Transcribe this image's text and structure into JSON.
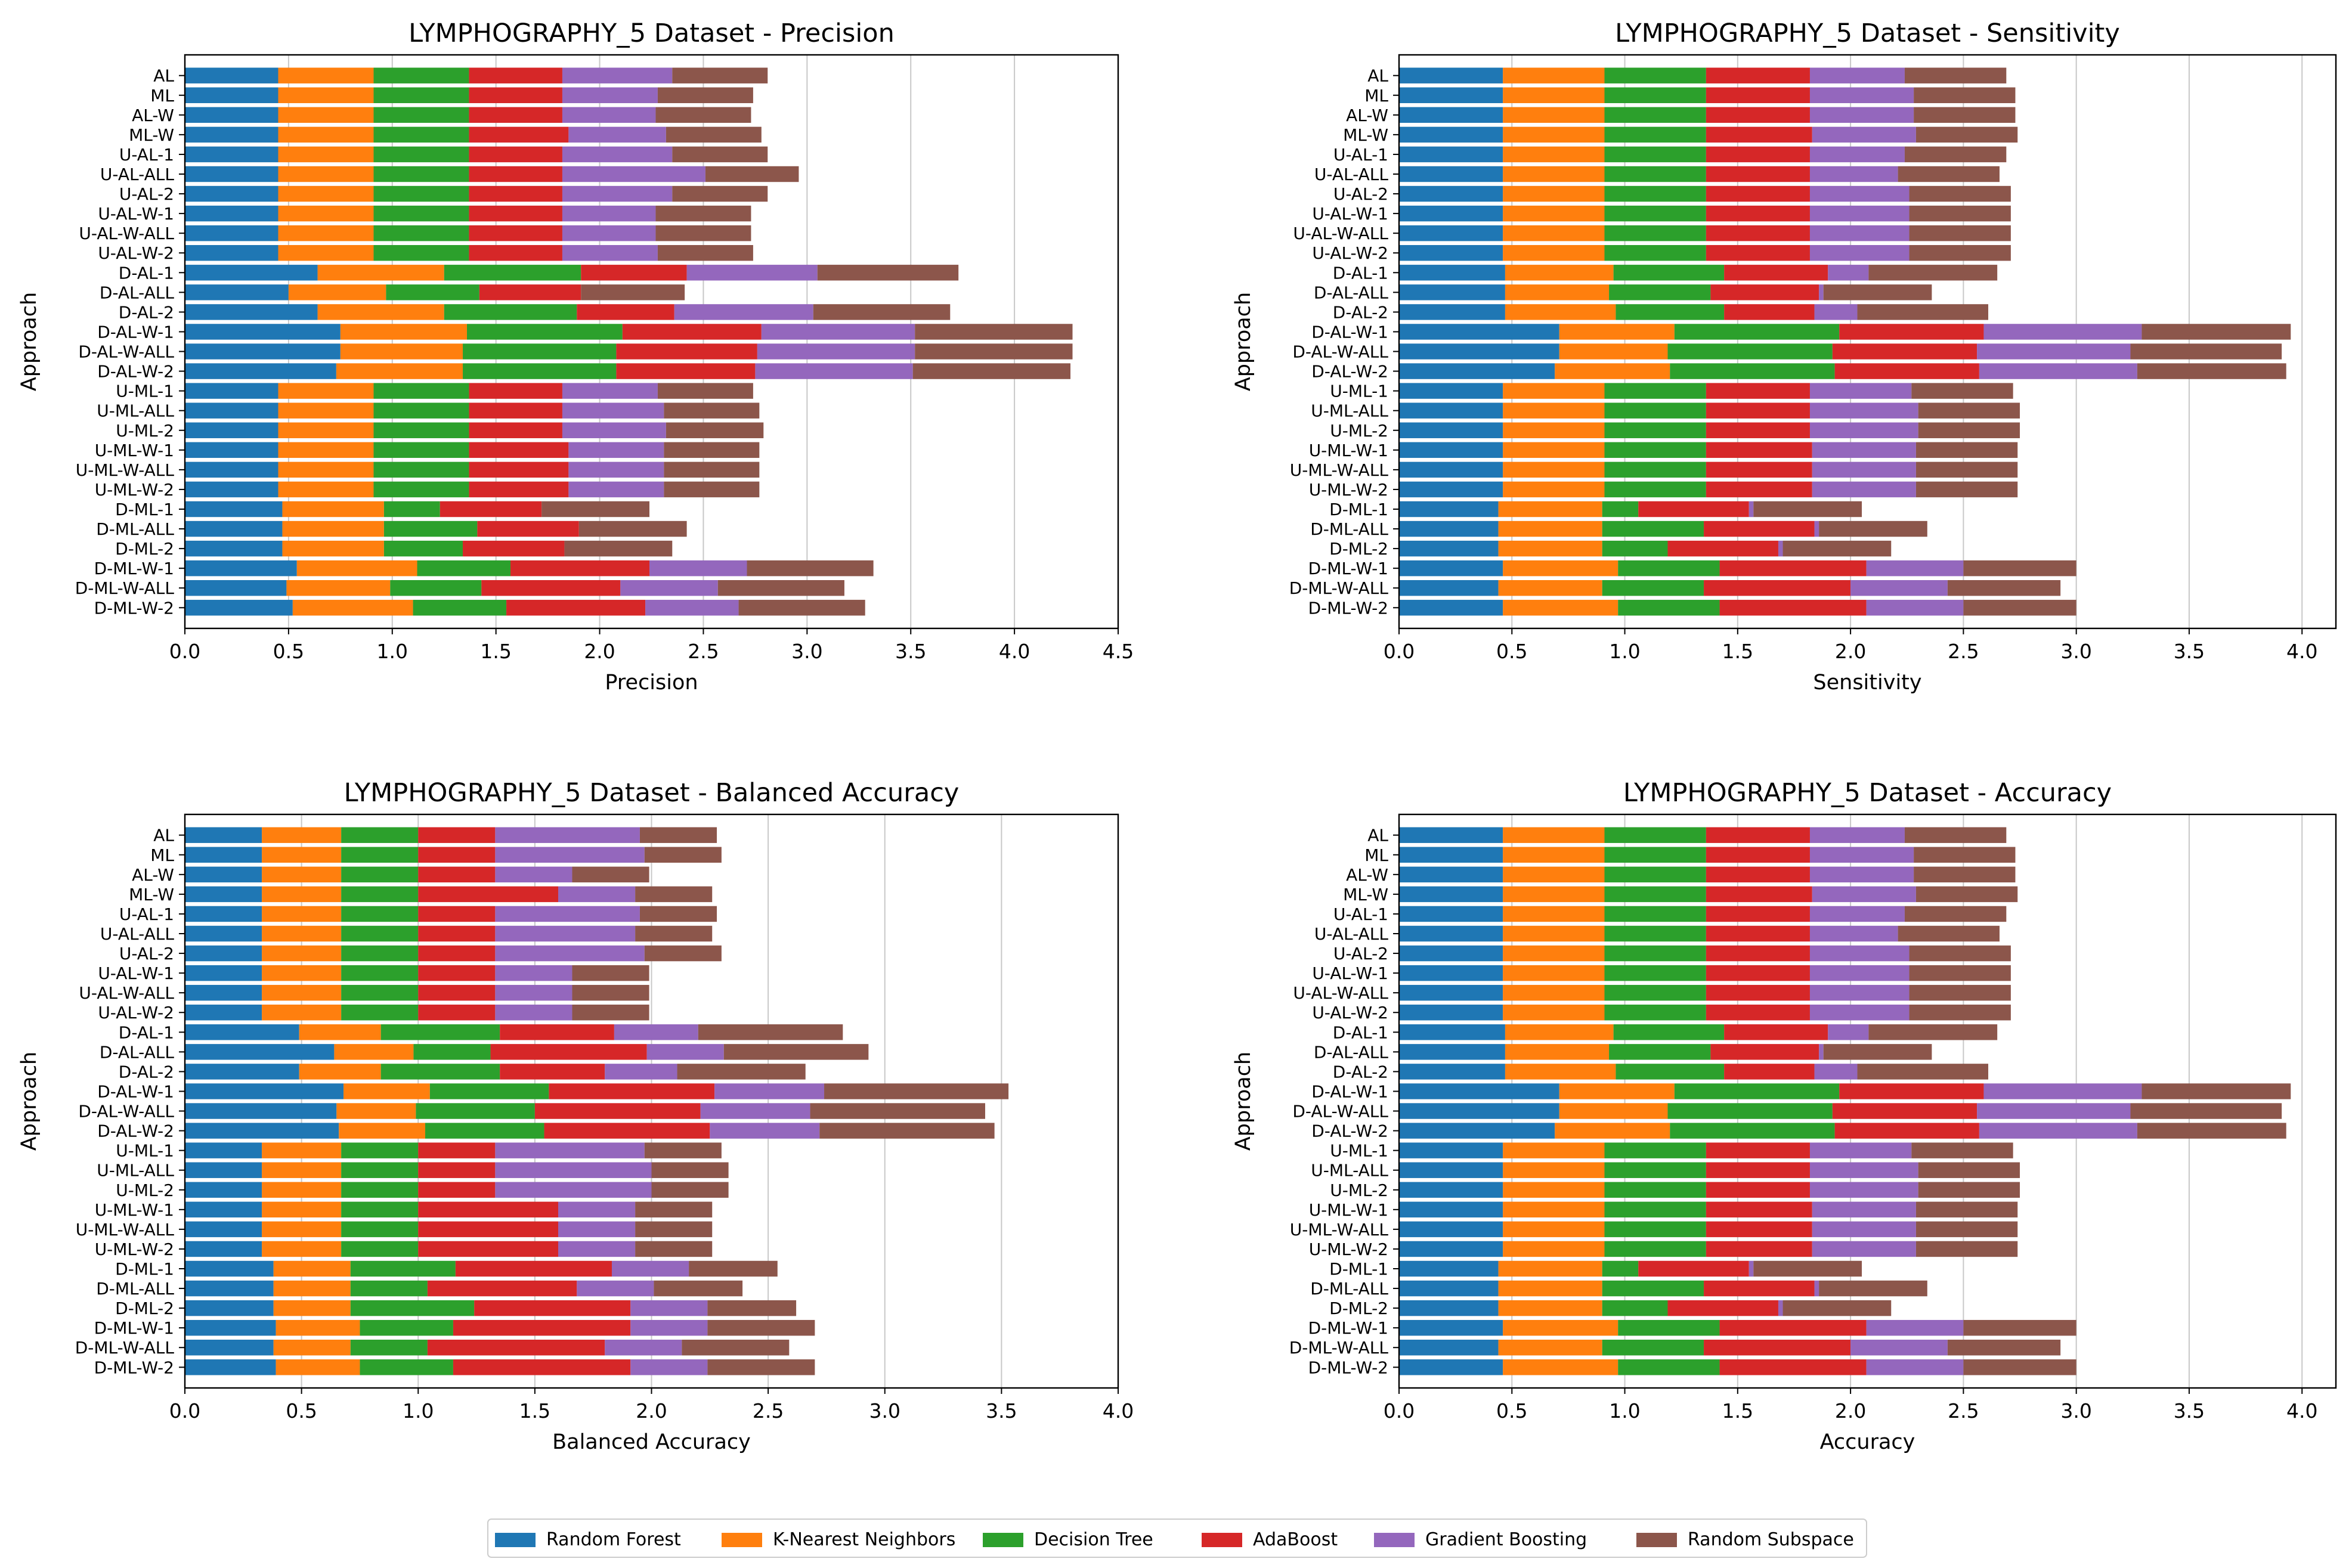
{
  "approaches": [
    "D-ML-W-2",
    "D-ML-W-ALL",
    "D-ML-W-1",
    "D-ML-2",
    "D-ML-ALL",
    "D-ML-1",
    "U-ML-W-2",
    "U-ML-W-ALL",
    "U-ML-W-1",
    "U-ML-2",
    "U-ML-ALL",
    "U-ML-1",
    "D-AL-W-2",
    "D-AL-W-ALL",
    "D-AL-W-1",
    "D-AL-2",
    "D-AL-ALL",
    "D-AL-1",
    "U-AL-W-2",
    "U-AL-W-ALL",
    "U-AL-W-1",
    "U-AL-2",
    "U-AL-ALL",
    "U-AL-1",
    "ML-W",
    "AL-W",
    "ML",
    "AL"
  ],
  "legend": {
    "placement": "bottom-center",
    "entries": [
      {
        "name": "Random Forest",
        "color": "#1f77b4"
      },
      {
        "name": "K-Nearest Neighbors",
        "color": "#ff7f0e"
      },
      {
        "name": "Decision Tree",
        "color": "#2ca02c"
      },
      {
        "name": "AdaBoost",
        "color": "#d62728"
      },
      {
        "name": "Gradient Boosting",
        "color": "#9467bd"
      },
      {
        "name": "Random Subspace",
        "color": "#8c564b"
      }
    ]
  },
  "chart_data": [
    {
      "type": "bar",
      "orientation": "horizontal",
      "stacked": true,
      "title": "LYMPHOGRAPHY_5 Dataset - Precision",
      "xlabel": "Precision",
      "ylabel": "Approach",
      "xlim": [
        0,
        4.5
      ],
      "xticks": [
        "0.0",
        "0.5",
        "1.0",
        "1.5",
        "2.0",
        "2.5",
        "3.0",
        "3.5",
        "4.0",
        "4.5"
      ],
      "grid": "x",
      "series": [
        {
          "name": "Random Forest",
          "values": [
            0.52,
            0.49,
            0.54,
            0.47,
            0.47,
            0.47,
            0.45,
            0.45,
            0.45,
            0.45,
            0.45,
            0.45,
            0.73,
            0.75,
            0.75,
            0.64,
            0.5,
            0.64,
            0.45,
            0.45,
            0.45,
            0.45,
            0.45,
            0.45,
            0.45,
            0.45,
            0.45,
            0.45
          ]
        },
        {
          "name": "K-Nearest Neighbors",
          "values": [
            0.58,
            0.5,
            0.58,
            0.49,
            0.49,
            0.49,
            0.46,
            0.46,
            0.46,
            0.46,
            0.46,
            0.46,
            0.61,
            0.59,
            0.61,
            0.61,
            0.47,
            0.61,
            0.46,
            0.46,
            0.46,
            0.46,
            0.46,
            0.46,
            0.46,
            0.46,
            0.46,
            0.46
          ]
        },
        {
          "name": "Decision Tree",
          "values": [
            0.45,
            0.44,
            0.45,
            0.38,
            0.45,
            0.27,
            0.46,
            0.46,
            0.46,
            0.46,
            0.46,
            0.46,
            0.74,
            0.74,
            0.75,
            0.64,
            0.45,
            0.66,
            0.46,
            0.46,
            0.46,
            0.46,
            0.46,
            0.46,
            0.46,
            0.46,
            0.46,
            0.46
          ]
        },
        {
          "name": "AdaBoost",
          "values": [
            0.67,
            0.67,
            0.67,
            0.49,
            0.49,
            0.49,
            0.48,
            0.48,
            0.48,
            0.45,
            0.45,
            0.45,
            0.67,
            0.68,
            0.67,
            0.47,
            0.49,
            0.51,
            0.45,
            0.45,
            0.45,
            0.45,
            0.45,
            0.45,
            0.48,
            0.45,
            0.45,
            0.45
          ]
        },
        {
          "name": "Gradient Boosting",
          "values": [
            0.45,
            0.47,
            0.47,
            0.0,
            0.0,
            0.0,
            0.46,
            0.46,
            0.46,
            0.5,
            0.49,
            0.46,
            0.76,
            0.76,
            0.74,
            0.67,
            0.0,
            0.63,
            0.46,
            0.45,
            0.45,
            0.53,
            0.69,
            0.53,
            0.47,
            0.45,
            0.46,
            0.53
          ]
        },
        {
          "name": "Random Subspace",
          "values": [
            0.61,
            0.61,
            0.61,
            0.52,
            0.52,
            0.52,
            0.46,
            0.46,
            0.46,
            0.47,
            0.46,
            0.46,
            0.76,
            0.76,
            0.76,
            0.66,
            0.5,
            0.68,
            0.46,
            0.46,
            0.46,
            0.46,
            0.45,
            0.46,
            0.46,
            0.46,
            0.46,
            0.46
          ]
        }
      ]
    },
    {
      "type": "bar",
      "orientation": "horizontal",
      "stacked": true,
      "title": "LYMPHOGRAPHY_5 Dataset - Sensitivity",
      "xlabel": "Sensitivity",
      "ylabel": "Approach",
      "xlim": [
        0,
        4.15
      ],
      "xticks": [
        "0.0",
        "0.5",
        "1.0",
        "1.5",
        "2.0",
        "2.5",
        "3.0",
        "3.5",
        "4.0"
      ],
      "grid": "x",
      "series": [
        {
          "name": "Random Forest",
          "values": [
            0.46,
            0.44,
            0.46,
            0.44,
            0.44,
            0.44,
            0.46,
            0.46,
            0.46,
            0.46,
            0.46,
            0.46,
            0.69,
            0.71,
            0.71,
            0.47,
            0.47,
            0.47,
            0.46,
            0.46,
            0.46,
            0.46,
            0.46,
            0.46,
            0.46,
            0.46,
            0.46,
            0.46
          ]
        },
        {
          "name": "K-Nearest Neighbors",
          "values": [
            0.51,
            0.46,
            0.51,
            0.46,
            0.46,
            0.46,
            0.45,
            0.45,
            0.45,
            0.45,
            0.45,
            0.45,
            0.51,
            0.48,
            0.51,
            0.49,
            0.46,
            0.48,
            0.45,
            0.45,
            0.45,
            0.45,
            0.45,
            0.45,
            0.45,
            0.45,
            0.45,
            0.45
          ]
        },
        {
          "name": "Decision Tree",
          "values": [
            0.45,
            0.45,
            0.45,
            0.29,
            0.45,
            0.16,
            0.45,
            0.45,
            0.45,
            0.45,
            0.45,
            0.45,
            0.73,
            0.73,
            0.73,
            0.48,
            0.45,
            0.49,
            0.45,
            0.45,
            0.45,
            0.45,
            0.45,
            0.45,
            0.45,
            0.45,
            0.45,
            0.45
          ]
        },
        {
          "name": "AdaBoost",
          "values": [
            0.65,
            0.65,
            0.65,
            0.49,
            0.49,
            0.49,
            0.47,
            0.47,
            0.47,
            0.46,
            0.46,
            0.46,
            0.64,
            0.64,
            0.64,
            0.4,
            0.48,
            0.46,
            0.46,
            0.46,
            0.46,
            0.46,
            0.46,
            0.46,
            0.47,
            0.46,
            0.46,
            0.46
          ]
        },
        {
          "name": "Gradient Boosting",
          "values": [
            0.43,
            0.43,
            0.43,
            0.02,
            0.02,
            0.02,
            0.46,
            0.46,
            0.46,
            0.48,
            0.48,
            0.45,
            0.7,
            0.68,
            0.7,
            0.19,
            0.02,
            0.18,
            0.44,
            0.44,
            0.44,
            0.44,
            0.39,
            0.42,
            0.46,
            0.46,
            0.46,
            0.42
          ]
        },
        {
          "name": "Random Subspace",
          "values": [
            0.5,
            0.5,
            0.5,
            0.48,
            0.48,
            0.48,
            0.45,
            0.45,
            0.45,
            0.45,
            0.45,
            0.45,
            0.66,
            0.67,
            0.66,
            0.58,
            0.48,
            0.57,
            0.45,
            0.45,
            0.45,
            0.45,
            0.45,
            0.45,
            0.45,
            0.45,
            0.45,
            0.45
          ]
        }
      ]
    },
    {
      "type": "bar",
      "orientation": "horizontal",
      "stacked": true,
      "title": "LYMPHOGRAPHY_5 Dataset - Balanced Accuracy",
      "xlabel": "Balanced Accuracy",
      "ylabel": "Approach",
      "xlim": [
        0,
        4.0
      ],
      "xticks": [
        "0.0",
        "0.5",
        "1.0",
        "1.5",
        "2.0",
        "2.5",
        "3.0",
        "3.5",
        "4.0"
      ],
      "grid": "x",
      "series": [
        {
          "name": "Random Forest",
          "values": [
            0.39,
            0.38,
            0.39,
            0.38,
            0.38,
            0.38,
            0.33,
            0.33,
            0.33,
            0.33,
            0.33,
            0.33,
            0.66,
            0.65,
            0.68,
            0.49,
            0.64,
            0.49,
            0.33,
            0.33,
            0.33,
            0.33,
            0.33,
            0.33,
            0.33,
            0.33,
            0.33,
            0.33
          ]
        },
        {
          "name": "K-Nearest Neighbors",
          "values": [
            0.36,
            0.33,
            0.36,
            0.33,
            0.33,
            0.33,
            0.34,
            0.34,
            0.34,
            0.34,
            0.34,
            0.34,
            0.37,
            0.34,
            0.37,
            0.35,
            0.34,
            0.35,
            0.34,
            0.34,
            0.34,
            0.34,
            0.34,
            0.34,
            0.34,
            0.34,
            0.34,
            0.34
          ]
        },
        {
          "name": "Decision Tree",
          "values": [
            0.4,
            0.33,
            0.4,
            0.53,
            0.33,
            0.45,
            0.33,
            0.33,
            0.33,
            0.33,
            0.33,
            0.33,
            0.51,
            0.51,
            0.51,
            0.51,
            0.33,
            0.51,
            0.33,
            0.33,
            0.33,
            0.33,
            0.33,
            0.33,
            0.33,
            0.33,
            0.33,
            0.33
          ]
        },
        {
          "name": "AdaBoost",
          "values": [
            0.76,
            0.76,
            0.76,
            0.67,
            0.64,
            0.67,
            0.6,
            0.6,
            0.6,
            0.33,
            0.33,
            0.33,
            0.71,
            0.71,
            0.71,
            0.45,
            0.67,
            0.49,
            0.33,
            0.33,
            0.33,
            0.33,
            0.33,
            0.33,
            0.6,
            0.33,
            0.33,
            0.33
          ]
        },
        {
          "name": "Gradient Boosting",
          "values": [
            0.33,
            0.33,
            0.33,
            0.33,
            0.33,
            0.33,
            0.33,
            0.33,
            0.33,
            0.67,
            0.67,
            0.64,
            0.47,
            0.47,
            0.47,
            0.31,
            0.33,
            0.36,
            0.33,
            0.33,
            0.33,
            0.64,
            0.6,
            0.62,
            0.33,
            0.33,
            0.64,
            0.62
          ]
        },
        {
          "name": "Random Subspace",
          "values": [
            0.46,
            0.46,
            0.46,
            0.38,
            0.38,
            0.38,
            0.33,
            0.33,
            0.33,
            0.33,
            0.33,
            0.33,
            0.75,
            0.75,
            0.79,
            0.55,
            0.62,
            0.62,
            0.33,
            0.33,
            0.33,
            0.33,
            0.33,
            0.33,
            0.33,
            0.33,
            0.33,
            0.33
          ]
        }
      ]
    },
    {
      "type": "bar",
      "orientation": "horizontal",
      "stacked": true,
      "title": "LYMPHOGRAPHY_5 Dataset - Accuracy",
      "xlabel": "Accuracy",
      "ylabel": "Approach",
      "xlim": [
        0,
        4.15
      ],
      "xticks": [
        "0.0",
        "0.5",
        "1.0",
        "1.5",
        "2.0",
        "2.5",
        "3.0",
        "3.5",
        "4.0"
      ],
      "grid": "x",
      "series": [
        {
          "name": "Random Forest",
          "values": [
            0.46,
            0.44,
            0.46,
            0.44,
            0.44,
            0.44,
            0.46,
            0.46,
            0.46,
            0.46,
            0.46,
            0.46,
            0.69,
            0.71,
            0.71,
            0.47,
            0.47,
            0.47,
            0.46,
            0.46,
            0.46,
            0.46,
            0.46,
            0.46,
            0.46,
            0.46,
            0.46,
            0.46
          ]
        },
        {
          "name": "K-Nearest Neighbors",
          "values": [
            0.51,
            0.46,
            0.51,
            0.46,
            0.46,
            0.46,
            0.45,
            0.45,
            0.45,
            0.45,
            0.45,
            0.45,
            0.51,
            0.48,
            0.51,
            0.49,
            0.46,
            0.48,
            0.45,
            0.45,
            0.45,
            0.45,
            0.45,
            0.45,
            0.45,
            0.45,
            0.45,
            0.45
          ]
        },
        {
          "name": "Decision Tree",
          "values": [
            0.45,
            0.45,
            0.45,
            0.29,
            0.45,
            0.16,
            0.45,
            0.45,
            0.45,
            0.45,
            0.45,
            0.45,
            0.73,
            0.73,
            0.73,
            0.48,
            0.45,
            0.49,
            0.45,
            0.45,
            0.45,
            0.45,
            0.45,
            0.45,
            0.45,
            0.45,
            0.45,
            0.45
          ]
        },
        {
          "name": "AdaBoost",
          "values": [
            0.65,
            0.65,
            0.65,
            0.49,
            0.49,
            0.49,
            0.47,
            0.47,
            0.47,
            0.46,
            0.46,
            0.46,
            0.64,
            0.64,
            0.64,
            0.4,
            0.48,
            0.46,
            0.46,
            0.46,
            0.46,
            0.46,
            0.46,
            0.46,
            0.47,
            0.46,
            0.46,
            0.46
          ]
        },
        {
          "name": "Gradient Boosting",
          "values": [
            0.43,
            0.43,
            0.43,
            0.02,
            0.02,
            0.02,
            0.46,
            0.46,
            0.46,
            0.48,
            0.48,
            0.45,
            0.7,
            0.68,
            0.7,
            0.19,
            0.02,
            0.18,
            0.44,
            0.44,
            0.44,
            0.44,
            0.39,
            0.42,
            0.46,
            0.46,
            0.46,
            0.42
          ]
        },
        {
          "name": "Random Subspace",
          "values": [
            0.5,
            0.5,
            0.5,
            0.48,
            0.48,
            0.48,
            0.45,
            0.45,
            0.45,
            0.45,
            0.45,
            0.45,
            0.66,
            0.67,
            0.66,
            0.58,
            0.48,
            0.57,
            0.45,
            0.45,
            0.45,
            0.45,
            0.45,
            0.45,
            0.45,
            0.45,
            0.45,
            0.45
          ]
        }
      ]
    }
  ]
}
